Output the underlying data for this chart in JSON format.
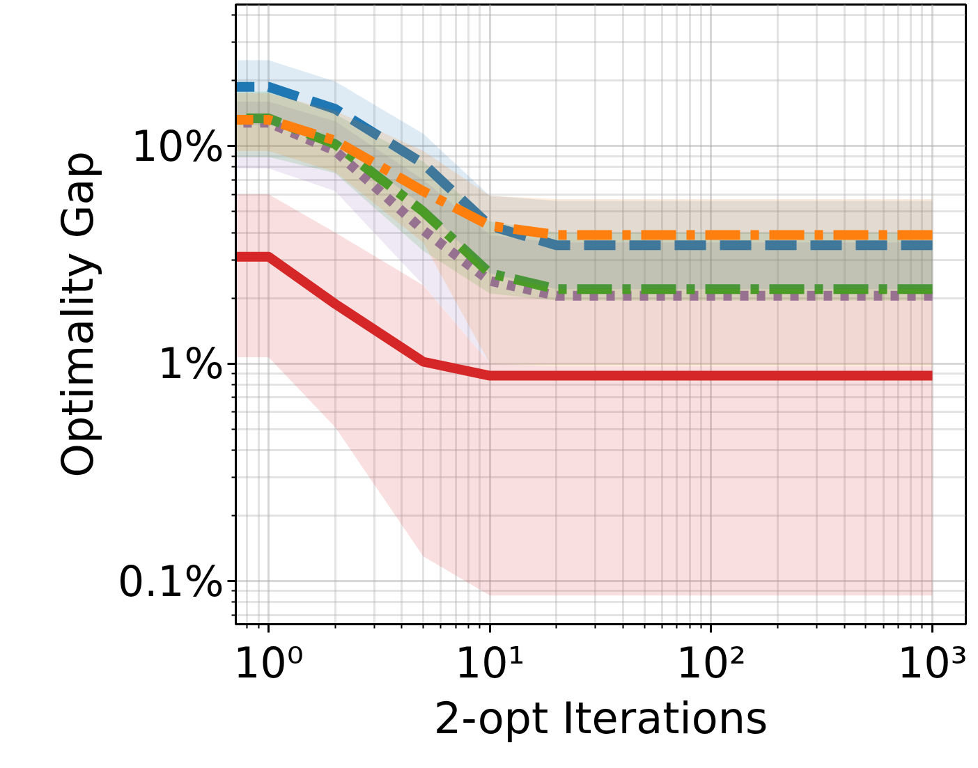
{
  "chart_data": {
    "type": "line",
    "xlabel": "2-opt Iterations",
    "ylabel": "Optimality Gap",
    "log": "xy",
    "grid": true,
    "x": [
      0.711,
      1,
      2,
      5,
      10,
      20,
      1000
    ],
    "xlim": [
      0.711,
      1416
    ],
    "ylim": [
      0.0634,
      44.7
    ],
    "xticks": [
      {
        "value": 1,
        "label": "10⁰"
      },
      {
        "value": 10,
        "label": "10¹"
      },
      {
        "value": 100,
        "label": "10²"
      },
      {
        "value": 1000,
        "label": "10³"
      }
    ],
    "yticks": [
      {
        "value": 0.1,
        "label": "0.1%"
      },
      {
        "value": 1,
        "label": "1%"
      },
      {
        "value": 10,
        "label": "10%"
      }
    ],
    "series": [
      {
        "color": "#9467bd",
        "line_style": "dotted",
        "values": [
          12.8,
          12.8,
          9.5,
          4.1,
          2.4,
          2.05,
          2.05
        ],
        "lower": [
          7.9,
          7.9,
          6.2,
          2.3,
          1.0,
          1.0,
          1.0
        ],
        "upper": [
          16,
          16,
          13,
          7,
          3.9,
          3.6,
          3.6
        ]
      },
      {
        "color": "#2ca02c",
        "line_style": "dashdot",
        "values": [
          13.4,
          13.4,
          10.2,
          5.0,
          2.6,
          2.2,
          2.2
        ],
        "lower": [
          8.9,
          8.9,
          7.5,
          3.3,
          2.1,
          1.95,
          1.95
        ],
        "upper": [
          17.8,
          17.8,
          14,
          8.5,
          4.5,
          4,
          4
        ]
      },
      {
        "color": "#1f77b4",
        "line_style": "dashed",
        "values": [
          18.7,
          18.7,
          14.8,
          8.3,
          4.3,
          3.5,
          3.5
        ],
        "lower": [
          12.5,
          12.5,
          10.5,
          5.3,
          2.6,
          2.2,
          2.2
        ],
        "upper": [
          24.8,
          24.8,
          19.8,
          11.4,
          5.9,
          5.6,
          5.6
        ]
      },
      {
        "color": "#ff7f0e",
        "line_style": "dashdot",
        "values": [
          13.2,
          13.2,
          10.6,
          6.2,
          4.3,
          3.9,
          3.9
        ],
        "lower": [
          9.5,
          9.5,
          7.6,
          3.6,
          1.0,
          0.97,
          0.97
        ],
        "upper": [
          17.5,
          17.5,
          14.5,
          9.5,
          5.9,
          5.7,
          5.7
        ]
      },
      {
        "color": "#d62728",
        "line_style": "solid",
        "values": [
          3.1,
          3.1,
          1.88,
          1.02,
          0.88,
          0.88,
          0.88
        ],
        "lower": [
          1.07,
          1.07,
          0.51,
          0.13,
          0.086,
          0.086,
          0.086
        ],
        "upper": [
          6.0,
          6.0,
          4.0,
          2.29,
          1.0,
          0.97,
          0.97
        ]
      }
    ]
  }
}
